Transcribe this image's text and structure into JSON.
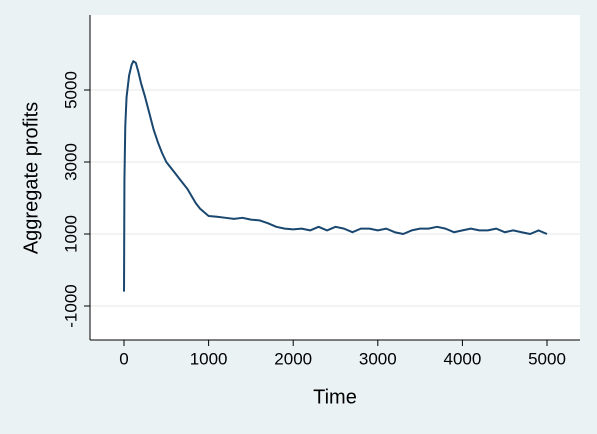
{
  "chart_data": {
    "type": "line",
    "xlabel": "Time",
    "ylabel": "Aggregate profits",
    "x": [
      0,
      5,
      15,
      30,
      60,
      90,
      110,
      140,
      170,
      200,
      250,
      300,
      350,
      400,
      450,
      500,
      550,
      600,
      650,
      700,
      750,
      800,
      850,
      900,
      950,
      1000,
      1100,
      1200,
      1300,
      1400,
      1500,
      1600,
      1700,
      1800,
      1900,
      2000,
      2100,
      2200,
      2300,
      2400,
      2500,
      2600,
      2700,
      2800,
      2900,
      3000,
      3100,
      3200,
      3300,
      3400,
      3500,
      3600,
      3700,
      3800,
      3900,
      4000,
      4100,
      4200,
      4300,
      4400,
      4500,
      4600,
      4700,
      4800,
      4900,
      5000
    ],
    "series": [
      {
        "color": "#1a476f",
        "values": [
          -600,
          2500,
          4000,
          4800,
          5400,
          5700,
          5800,
          5750,
          5500,
          5200,
          4800,
          4350,
          3900,
          3550,
          3250,
          3000,
          2850,
          2700,
          2550,
          2400,
          2250,
          2050,
          1850,
          1700,
          1600,
          1500,
          1480,
          1450,
          1420,
          1450,
          1400,
          1380,
          1300,
          1200,
          1150,
          1130,
          1150,
          1100,
          1200,
          1100,
          1200,
          1150,
          1050,
          1150,
          1150,
          1100,
          1150,
          1050,
          1000,
          1100,
          1150,
          1150,
          1200,
          1150,
          1050,
          1100,
          1150,
          1100,
          1100,
          1150,
          1050,
          1100,
          1050,
          1000,
          1100,
          1000
        ]
      }
    ],
    "xlim": [
      -402,
      5390
    ],
    "ylim": [
      -1944,
      7083
    ],
    "xticks": [
      0,
      1000,
      2000,
      3000,
      4000,
      5000
    ],
    "yticks": [
      -1000,
      1000,
      3000,
      5000
    ],
    "grid": true
  }
}
